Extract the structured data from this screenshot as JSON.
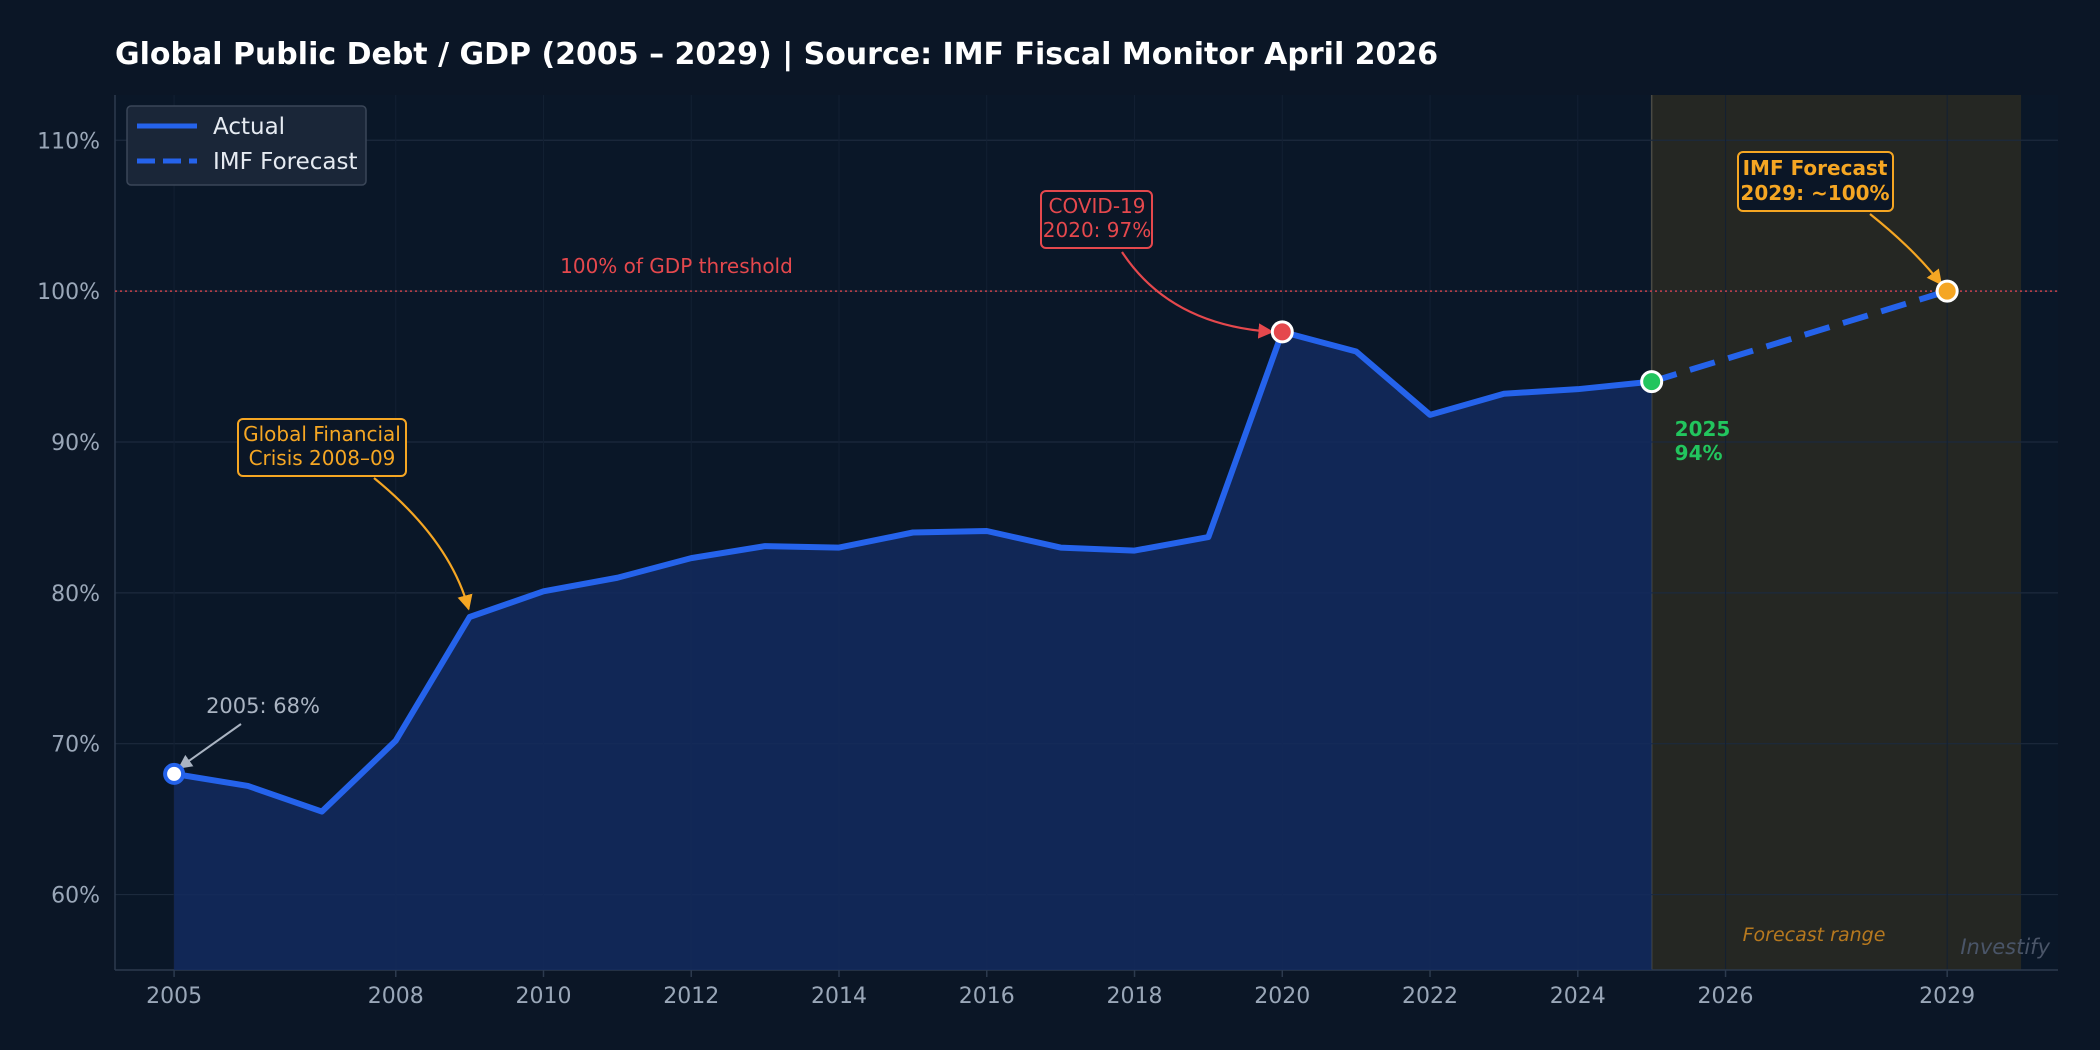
{
  "chart_data": {
    "type": "line",
    "title": "Global Public Debt / GDP (2005 – 2029)  |  Source: IMF Fiscal Monitor April 2026",
    "xlabel": "",
    "ylabel": "",
    "xlim": [
      2004.2,
      2030.5
    ],
    "ylim": [
      55,
      113
    ],
    "x_ticks": [
      2005,
      2008,
      2010,
      2012,
      2014,
      2016,
      2018,
      2020,
      2022,
      2024,
      2026,
      2029
    ],
    "y_ticks": [
      60,
      70,
      80,
      90,
      100,
      110
    ],
    "y_tick_labels": [
      "60%",
      "70%",
      "80%",
      "90%",
      "100%",
      "110%"
    ],
    "grid": true,
    "legend_position": "top-left",
    "series": [
      {
        "name": "Actual",
        "style": "solid",
        "color": "#2563eb",
        "x": [
          2005,
          2006,
          2007,
          2008,
          2009,
          2010,
          2011,
          2012,
          2013,
          2014,
          2015,
          2016,
          2017,
          2018,
          2019,
          2020,
          2021,
          2022,
          2023,
          2024,
          2025
        ],
        "y": [
          68.0,
          67.2,
          65.5,
          70.2,
          78.4,
          80.1,
          81.0,
          82.3,
          83.1,
          83.0,
          84.0,
          84.1,
          83.0,
          82.8,
          83.7,
          97.3,
          96.0,
          91.8,
          93.2,
          93.5,
          94.0
        ]
      },
      {
        "name": "IMF Forecast",
        "style": "dashed",
        "color": "#2563eb",
        "x": [
          2025,
          2026,
          2027,
          2028,
          2029
        ],
        "y": [
          94.0,
          95.5,
          97.0,
          98.5,
          100.0
        ]
      }
    ],
    "reference_line": {
      "y": 100,
      "label": "100% of GDP threshold",
      "color": "#e5484d"
    },
    "forecast_shading": {
      "x_start": 2025,
      "x_end": 2030,
      "label": "Forecast range"
    },
    "annotations": [
      {
        "id": "start",
        "lines": [
          "2005: 68%"
        ],
        "x": 2005,
        "y": 68.0,
        "color": "#aab4c2"
      },
      {
        "id": "gfc",
        "lines": [
          "Global Financial",
          "Crisis 2008–09"
        ],
        "x": 2009,
        "y": 78.4,
        "color": "#f5a623"
      },
      {
        "id": "covid",
        "lines": [
          "COVID-19",
          "2020: 97%"
        ],
        "x": 2020,
        "y": 97.3,
        "color": "#e5484d"
      },
      {
        "id": "current",
        "lines": [
          "2025",
          "94%"
        ],
        "x": 2025,
        "y": 94.0,
        "color": "#22c55e"
      },
      {
        "id": "forecast",
        "lines": [
          "IMF Forecast",
          "2029: ~100%"
        ],
        "x": 2029,
        "y": 100.0,
        "color": "#f5a623"
      }
    ],
    "watermark": "Investify",
    "colors": {
      "background": "#0b1626",
      "plot_background": "#0a1728",
      "line": "#2563eb",
      "area_fill": "#132a5e",
      "grid": "#1c2a3d",
      "tick_text": "#9aa7b8",
      "threshold": "#e5484d",
      "gfc": "#f5a623",
      "covid": "#e5484d",
      "current": "#22c55e",
      "forecast": "#f5a623"
    }
  }
}
